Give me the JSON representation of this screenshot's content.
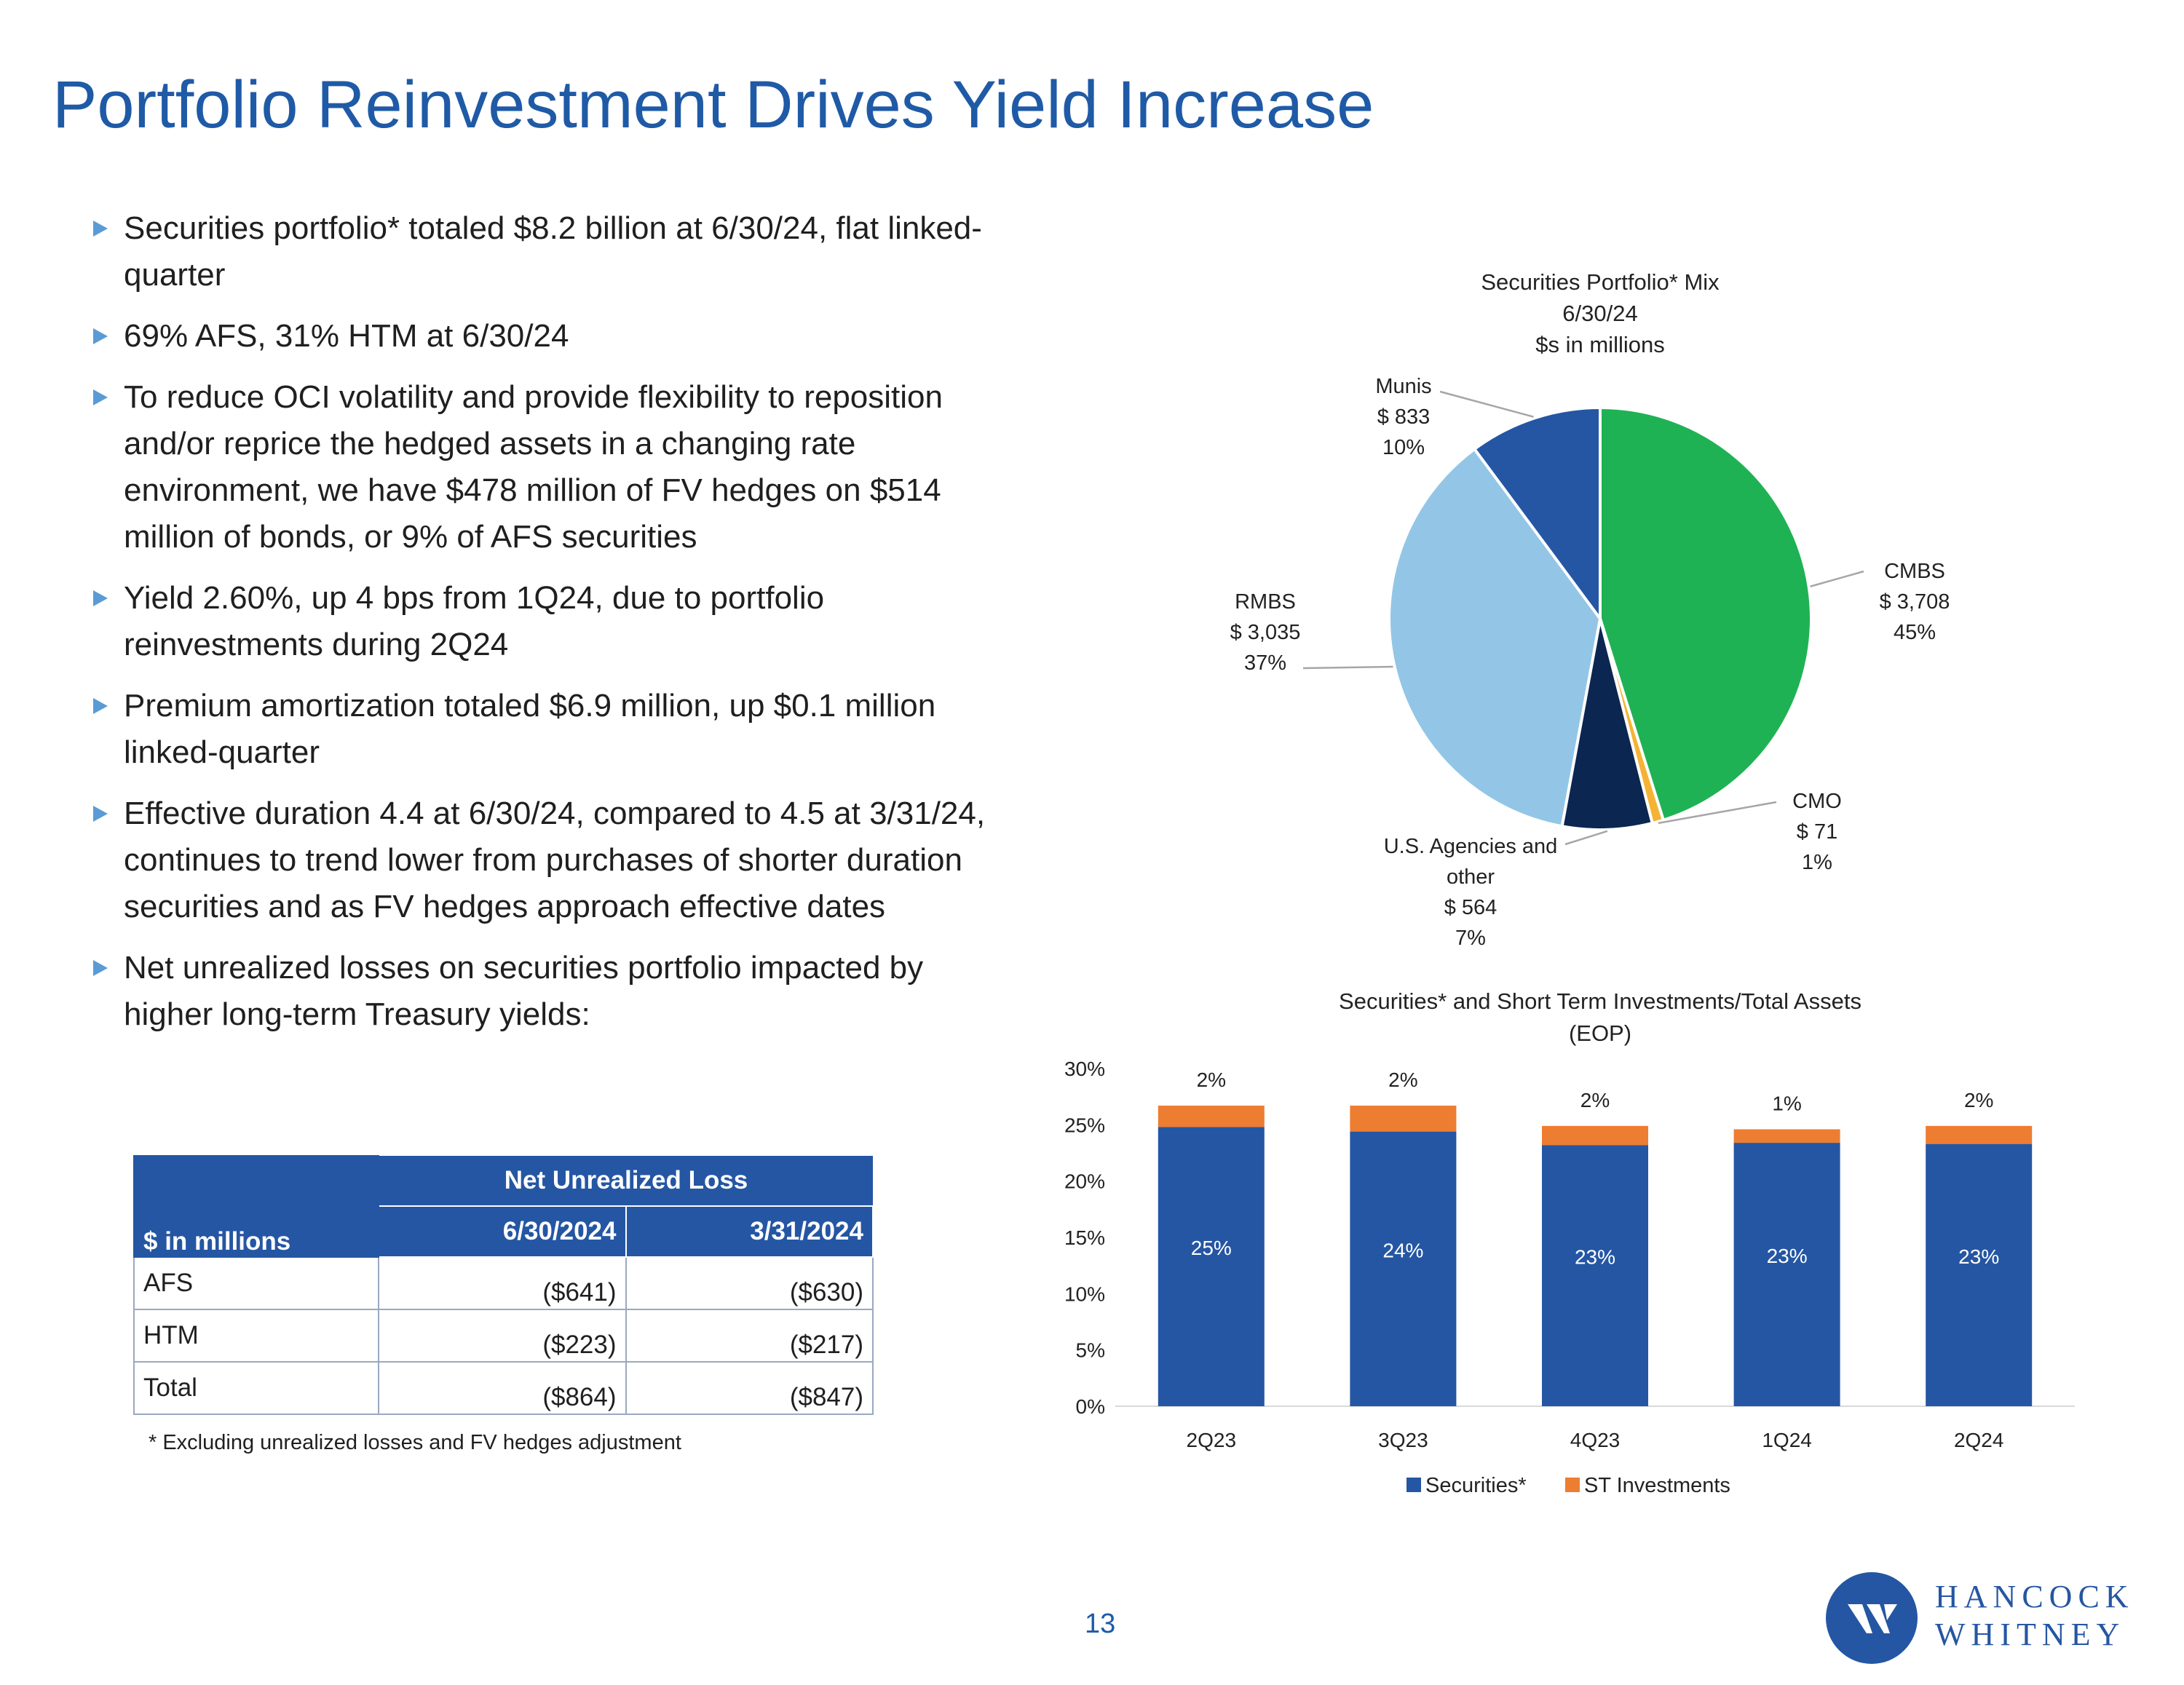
{
  "title": "Portfolio Reinvestment Drives Yield Increase",
  "bullets": [
    "Securities portfolio* totaled $8.2 billion at 6/30/24, flat linked-quarter",
    "69% AFS, 31% HTM at 6/30/24",
    "To reduce OCI volatility and provide flexibility to reposition and/or reprice the hedged assets in a changing rate environment, we have $478 million of FV hedges on $514 million of bonds, or 9% of AFS securities",
    "Yield 2.60%, up 4 bps from 1Q24, due to portfolio reinvestments during 2Q24",
    "Premium amortization totaled $6.9 million, up $0.1 million linked-quarter",
    "Effective duration 4.4 at 6/30/24, compared to 4.5 at 3/31/24, continues to trend lower from purchases of shorter duration securities and as FV hedges approach effective dates",
    "Net unrealized losses on securities portfolio impacted by higher long-term Treasury yields:"
  ],
  "table": {
    "row_label_header": "$ in millions",
    "group_header": "Net Unrealized Loss",
    "columns": [
      "6/30/2024",
      "3/31/2024"
    ],
    "rows": [
      {
        "name": "AFS",
        "values": [
          "($641)",
          "($630)"
        ]
      },
      {
        "name": "HTM",
        "values": [
          "($223)",
          "($217)"
        ]
      },
      {
        "name": "Total",
        "values": [
          "($864)",
          "($847)"
        ]
      }
    ]
  },
  "footnote": "* Excluding unrealized losses and FV hedges adjustment",
  "page_number": "13",
  "logo": {
    "line1": "HANCOCK",
    "line2": "WHITNEY"
  },
  "colors": {
    "title": "#1f5aa6",
    "securities": "#2556a3",
    "st_investments": "#ed7d31"
  },
  "chart_data": [
    {
      "type": "pie",
      "title": [
        "Securities Portfolio* Mix",
        "6/30/24",
        "$s in millions"
      ],
      "slices": [
        {
          "name": "CMBS",
          "value": 3708,
          "value_label": "$ 3,708",
          "percent": "45%",
          "color": "#1fb254"
        },
        {
          "name": "CMO",
          "value": 71,
          "value_label": "$ 71",
          "percent": "1%",
          "color": "#f5b335"
        },
        {
          "name": "U.S. Agencies and other",
          "value": 564,
          "value_label": "$ 564",
          "percent": "7%",
          "color": "#0a2651"
        },
        {
          "name": "RMBS",
          "value": 3035,
          "value_label": "$ 3,035",
          "percent": "37%",
          "color": "#93c6e6"
        },
        {
          "name": "Munis",
          "value": 833,
          "value_label": "$ 833",
          "percent": "10%",
          "color": "#2556a3"
        }
      ]
    },
    {
      "type": "bar",
      "stacked": true,
      "title": [
        "Securities* and Short Term Investments/Total Assets",
        "(EOP)"
      ],
      "categories": [
        "2Q23",
        "3Q23",
        "4Q23",
        "1Q24",
        "2Q24"
      ],
      "series": [
        {
          "name": "Securities*",
          "values": [
            24.8,
            24.4,
            23.2,
            23.4,
            23.3
          ],
          "labels": [
            "25%",
            "24%",
            "23%",
            "23%",
            "23%"
          ],
          "color": "#2556a3"
        },
        {
          "name": "ST Investments",
          "values": [
            1.9,
            2.3,
            1.7,
            1.2,
            1.6
          ],
          "labels": [
            "2%",
            "2%",
            "2%",
            "1%",
            "2%"
          ],
          "color": "#ed7d31"
        }
      ],
      "ylim": [
        0,
        30
      ],
      "yticks": [
        "0%",
        "5%",
        "10%",
        "15%",
        "20%",
        "25%",
        "30%"
      ],
      "legend": "bottom"
    }
  ]
}
